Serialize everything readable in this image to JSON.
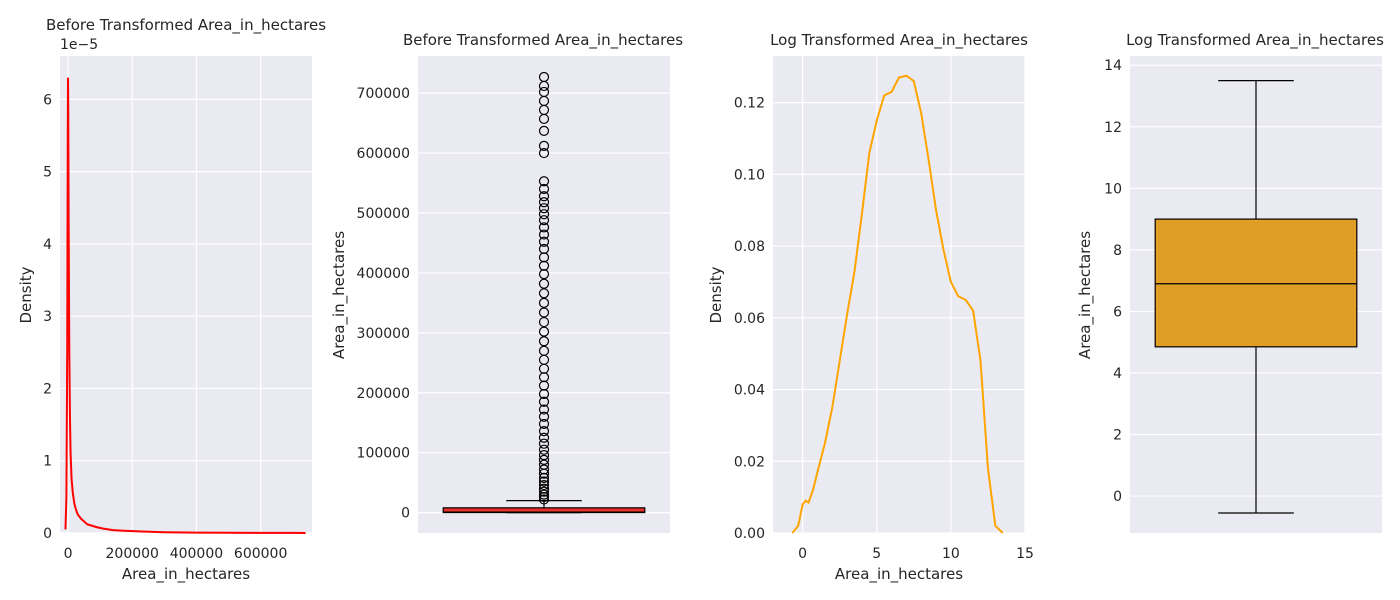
{
  "chart_data": [
    {
      "type": "line",
      "title": "Before Transformed Area_in_hectares",
      "xlabel": "Area_in_hectares",
      "ylabel": "Density",
      "y_offset_label": "1e−5",
      "color": "#ff0000",
      "xlim": [
        -25000,
        760000
      ],
      "ylim": [
        0,
        6.6
      ],
      "xticks": [
        0,
        200000,
        400000,
        600000
      ],
      "xtick_labels": [
        "0",
        "200000",
        "400000",
        "600000"
      ],
      "yticks": [
        0,
        1,
        2,
        3,
        4,
        5,
        6
      ],
      "ytick_labels": [
        "0",
        "1",
        "2",
        "3",
        "4",
        "5",
        "6"
      ],
      "x": [
        -8000,
        -5000,
        -2500,
        -800,
        0,
        800,
        2000,
        4000,
        6000,
        8000,
        11000,
        15000,
        20000,
        25000,
        30000,
        40000,
        50000,
        60000,
        75000,
        90000,
        110000,
        140000,
        180000,
        230000,
        300000,
        400000,
        500000,
        600000,
        700000,
        740000
      ],
      "y": [
        0.05,
        0.5,
        2.5,
        5.5,
        6.3,
        5.8,
        4.2,
        2.5,
        1.6,
        1.1,
        0.75,
        0.55,
        0.4,
        0.32,
        0.26,
        0.2,
        0.16,
        0.12,
        0.1,
        0.08,
        0.06,
        0.04,
        0.03,
        0.02,
        0.01,
        0.005,
        0.003,
        0.002,
        0.001,
        0.0005
      ]
    },
    {
      "type": "box",
      "title": "Before Transformed Area_in_hectares",
      "xlabel": "",
      "ylabel": "Area_in_hectares",
      "color": "#e8302a",
      "ylim": [
        -34000,
        762000
      ],
      "yticks": [
        0,
        100000,
        200000,
        300000,
        400000,
        500000,
        600000,
        700000
      ],
      "ytick_labels": [
        "0",
        "100000",
        "200000",
        "300000",
        "400000",
        "500000",
        "600000",
        "700000"
      ],
      "q1": 130,
      "median": 900,
      "q3": 8000,
      "whisker_low": 0,
      "whisker_high": 20000,
      "outliers": [
        22000,
        26000,
        30000,
        35000,
        40000,
        46000,
        52000,
        58000,
        65000,
        72000,
        80000,
        88000,
        96000,
        105000,
        115000,
        125000,
        136000,
        148000,
        160000,
        172000,
        185000,
        198000,
        212000,
        226000,
        240000,
        255000,
        270000,
        286000,
        302000,
        318000,
        334000,
        350000,
        366000,
        382000,
        398000,
        412000,
        426000,
        440000,
        452000,
        464000,
        476000,
        488000,
        498000,
        508000,
        518000,
        528000,
        540000,
        553000,
        600000,
        612000,
        637000,
        657000,
        672000,
        687000,
        702000,
        712000,
        727000
      ]
    },
    {
      "type": "line",
      "title": "Log Transformed Area_in_hectares",
      "xlabel": "Area_in_hectares",
      "ylabel": "Density",
      "color": "#ffa500",
      "xlim": [
        -2,
        15
      ],
      "ylim": [
        0,
        0.133
      ],
      "xticks": [
        0,
        5,
        10,
        15
      ],
      "xtick_labels": [
        "0",
        "5",
        "10",
        "15"
      ],
      "yticks": [
        0,
        0.02,
        0.04,
        0.06,
        0.08,
        0.1,
        0.12
      ],
      "ytick_labels": [
        "0.00",
        "0.02",
        "0.04",
        "0.06",
        "0.08",
        "0.10",
        "0.12"
      ],
      "x": [
        -0.7,
        -0.3,
        0,
        0.2,
        0.4,
        0.7,
        1,
        1.5,
        2,
        2.5,
        3,
        3.5,
        4,
        4.5,
        5,
        5.5,
        6,
        6.5,
        7,
        7.5,
        8,
        8.5,
        9,
        9.5,
        10,
        10.5,
        11,
        11.5,
        12,
        12.5,
        13,
        13.5
      ],
      "y": [
        0,
        0.002,
        0.008,
        0.009,
        0.0085,
        0.012,
        0.017,
        0.025,
        0.035,
        0.048,
        0.061,
        0.073,
        0.089,
        0.106,
        0.115,
        0.122,
        0.123,
        0.127,
        0.1275,
        0.126,
        0.117,
        0.104,
        0.09,
        0.079,
        0.07,
        0.066,
        0.065,
        0.062,
        0.048,
        0.018,
        0.002,
        0
      ]
    },
    {
      "type": "box",
      "title": "Log Transformed Area_in_hectares",
      "xlabel": "",
      "ylabel": "Area_in_hectares",
      "color": "#e09e24",
      "ylim": [
        -1.2,
        14.3
      ],
      "yticks": [
        0,
        2,
        4,
        6,
        8,
        10,
        12,
        14
      ],
      "ytick_labels": [
        "0",
        "2",
        "4",
        "6",
        "8",
        "10",
        "12",
        "14"
      ],
      "q1": 4.85,
      "median": 6.9,
      "q3": 9.0,
      "whisker_low": -0.55,
      "whisker_high": 13.5,
      "outliers": []
    }
  ]
}
